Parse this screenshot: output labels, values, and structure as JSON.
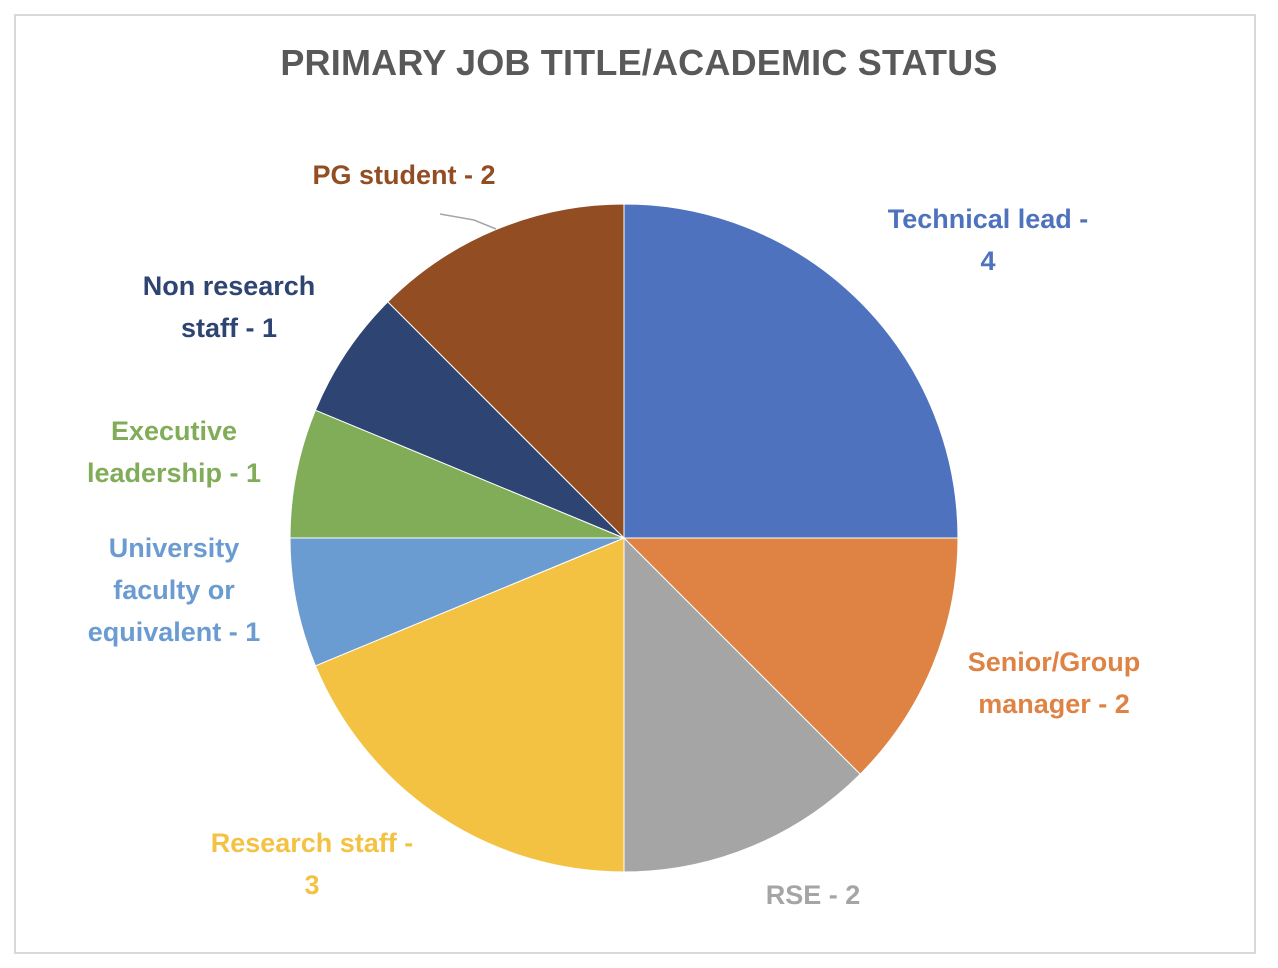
{
  "chart_data": {
    "type": "pie",
    "title": "PRIMARY JOB TITLE/ACADEMIC STATUS",
    "slices": [
      {
        "label": "Technical lead",
        "value": 4,
        "color": "#4f72be",
        "label_lines": [
          "Technical lead -",
          "4"
        ],
        "label_color": "#4f72be"
      },
      {
        "label": "Senior/Group manager",
        "value": 2,
        "color": "#de8344",
        "label_lines": [
          "Senior/Group",
          "manager - 2"
        ],
        "label_color": "#de8344"
      },
      {
        "label": "RSE",
        "value": 2,
        "color": "#a5a5a5",
        "label_lines": [
          "RSE - 2"
        ],
        "label_color": "#a5a5a5"
      },
      {
        "label": "Research staff",
        "value": 3,
        "color": "#f4c243",
        "label_lines": [
          "Research staff -",
          "3"
        ],
        "label_color": "#f4c243"
      },
      {
        "label": "University faculty or equivalent",
        "value": 1,
        "color": "#6a9bd1",
        "label_lines": [
          "University",
          "faculty or",
          "equivalent - 1"
        ],
        "label_color": "#6a9bd1"
      },
      {
        "label": "Executive leadership",
        "value": 1,
        "color": "#81ac58",
        "label_lines": [
          "Executive",
          "leadership - 1"
        ],
        "label_color": "#81ac58"
      },
      {
        "label": "Non research staff",
        "value": 1,
        "color": "#2e4473",
        "label_lines": [
          "Non research",
          "staff - 1"
        ],
        "label_color": "#2e4473"
      },
      {
        "label": "PG student",
        "value": 2,
        "color": "#924d22",
        "label_lines": [
          "PG student - 2"
        ],
        "label_color": "#924d22"
      }
    ],
    "start_position": "12 o'clock",
    "direction": "clockwise",
    "legend": "none",
    "data_labels": "category name and value, outside slices"
  }
}
